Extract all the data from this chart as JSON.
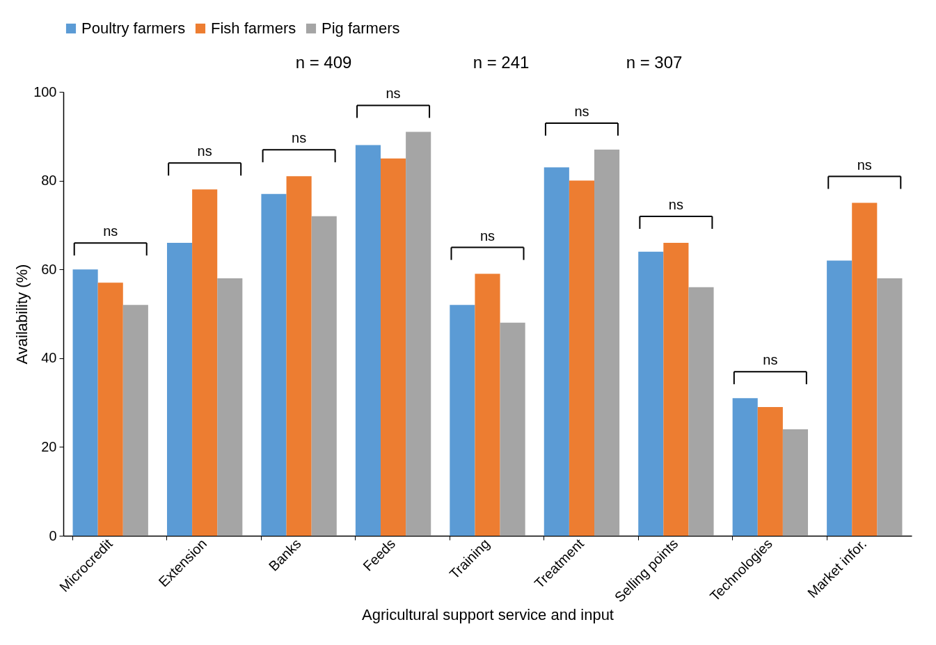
{
  "chart_data": {
    "type": "bar",
    "xlabel": "Agricultural support service and input",
    "ylabel": "Availability (%)",
    "categories": [
      "Microcredit",
      "Extension",
      "Banks",
      "Feeds",
      "Training",
      "Treatment",
      "Selling points",
      "Technologies",
      "Market infor."
    ],
    "series": [
      {
        "name": "Poultry farmers",
        "color": "#5b9bd5",
        "values": [
          60,
          66,
          77,
          88,
          52,
          83,
          64,
          31,
          62
        ]
      },
      {
        "name": "Fish farmers",
        "color": "#ed7d31",
        "values": [
          57,
          78,
          81,
          85,
          59,
          80,
          66,
          29,
          75
        ]
      },
      {
        "name": "Pig farmers",
        "color": "#a5a5a5",
        "values": [
          52,
          58,
          72,
          91,
          48,
          87,
          56,
          24,
          58
        ]
      }
    ],
    "ylim": [
      0,
      100
    ],
    "yticks": [
      0,
      20,
      40,
      60,
      80,
      100
    ],
    "grid": false,
    "legend": "top",
    "annotations": [
      "n = 409",
      "n = 241",
      "n = 307",
      "ns",
      "ns",
      "ns",
      "ns",
      "ns",
      "ns",
      "ns",
      "ns",
      "ns"
    ]
  }
}
